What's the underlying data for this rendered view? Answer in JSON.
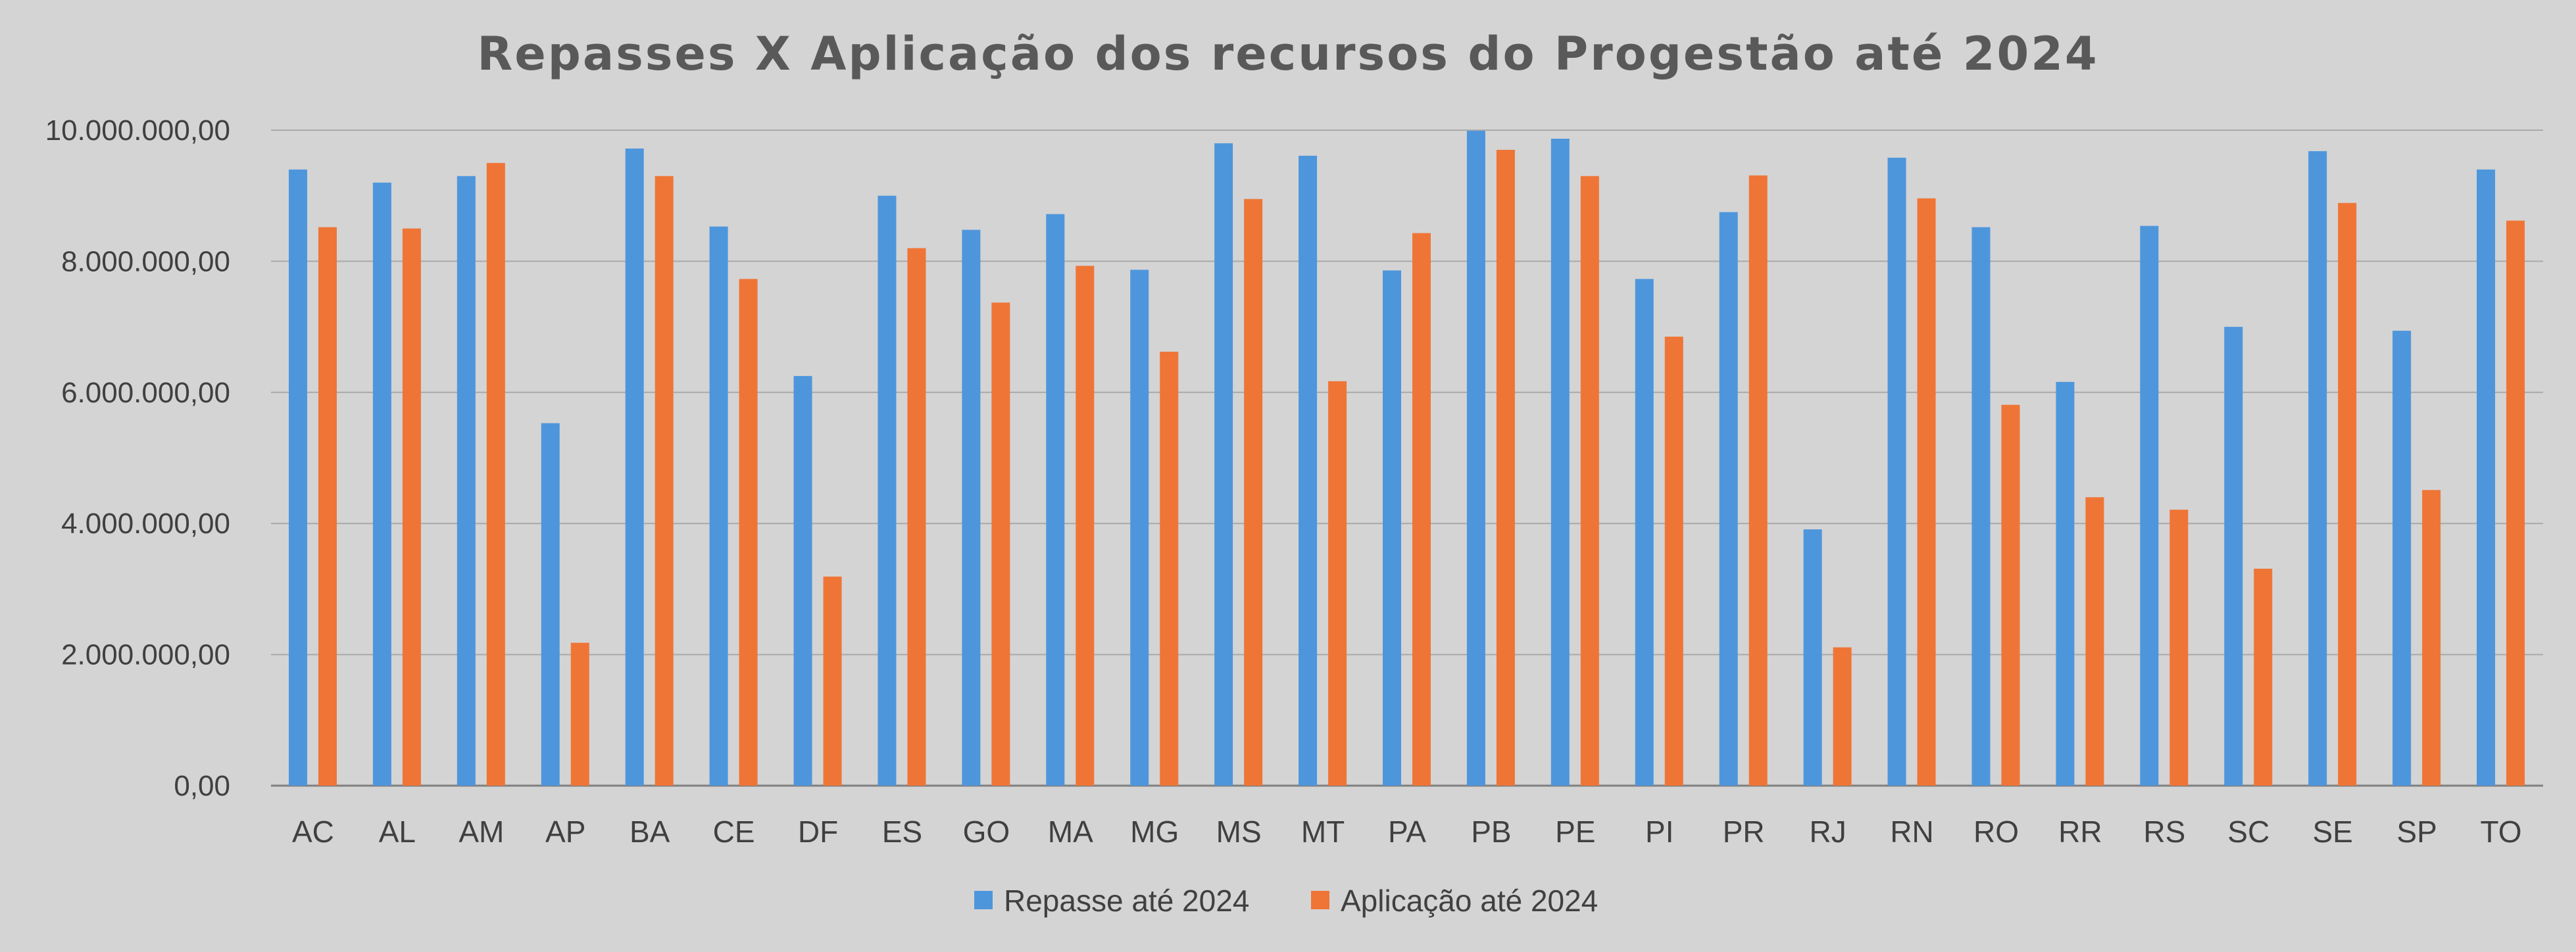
{
  "chart_data": {
    "type": "bar",
    "title": "Repasses X Aplicação dos recursos do Progestão até 2024",
    "xlabel": "",
    "ylabel": "",
    "ylim": [
      0,
      10000000
    ],
    "yticks": [
      0,
      2000000,
      4000000,
      6000000,
      8000000,
      10000000
    ],
    "ytick_labels": [
      "0,00",
      "2.000.000,00",
      "4.000.000,00",
      "6.000.000,00",
      "8.000.000,00",
      "10.000.000,00"
    ],
    "grid": true,
    "legend_position": "bottom",
    "categories": [
      "AC",
      "AL",
      "AM",
      "AP",
      "BA",
      "CE",
      "DF",
      "ES",
      "GO",
      "MA",
      "MG",
      "MS",
      "MT",
      "PA",
      "PB",
      "PE",
      "PI",
      "PR",
      "RJ",
      "RN",
      "RO",
      "RR",
      "RS",
      "SC",
      "SE",
      "SP",
      "TO"
    ],
    "series": [
      {
        "name": "Repasse até 2024",
        "color": "#4e96dc",
        "values": [
          9400000,
          9200000,
          9300000,
          5530000,
          9720000,
          8530000,
          6250000,
          9000000,
          8480000,
          8720000,
          7870000,
          9800000,
          9610000,
          7860000,
          9990000,
          9870000,
          7730000,
          8750000,
          3910000,
          9580000,
          8520000,
          6160000,
          8540000,
          7000000,
          9680000,
          6940000,
          9400000
        ]
      },
      {
        "name": "Aplicação até 2024",
        "color": "#ef7536",
        "values": [
          8520000,
          8500000,
          9500000,
          2180000,
          9300000,
          7730000,
          3190000,
          8200000,
          7370000,
          7930000,
          6620000,
          8950000,
          6170000,
          8430000,
          9700000,
          9300000,
          6850000,
          9310000,
          2110000,
          8960000,
          5810000,
          4400000,
          4210000,
          3310000,
          8890000,
          4510000,
          8620000
        ]
      }
    ]
  }
}
